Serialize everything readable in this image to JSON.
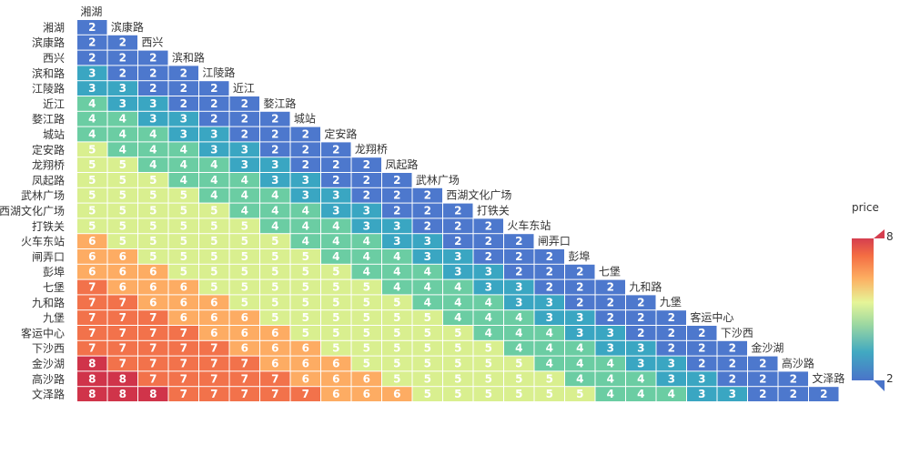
{
  "chart_data": {
    "type": "heatmap",
    "title": "",
    "stations": [
      "湘湖",
      "滨康路",
      "西兴",
      "滨和路",
      "江陵路",
      "近江",
      "婺江路",
      "城站",
      "定安路",
      "龙翔桥",
      "凤起路",
      "武林广场",
      "西湖文化广场",
      "打铁关",
      "火车东站",
      "闸弄口",
      "彭埠",
      "七堡",
      "九和路",
      "九堡",
      "客运中心",
      "下沙西",
      "金沙湖",
      "高沙路",
      "文泽路"
    ],
    "rows": [
      [
        2
      ],
      [
        2,
        2
      ],
      [
        2,
        2,
        2
      ],
      [
        3,
        2,
        2,
        2
      ],
      [
        3,
        3,
        2,
        2,
        2
      ],
      [
        4,
        3,
        3,
        2,
        2,
        2
      ],
      [
        4,
        4,
        3,
        3,
        2,
        2,
        2
      ],
      [
        4,
        4,
        4,
        3,
        3,
        2,
        2,
        2
      ],
      [
        5,
        4,
        4,
        4,
        3,
        3,
        2,
        2,
        2
      ],
      [
        5,
        5,
        4,
        4,
        4,
        3,
        3,
        2,
        2,
        2
      ],
      [
        5,
        5,
        5,
        4,
        4,
        4,
        3,
        3,
        2,
        2,
        2
      ],
      [
        5,
        5,
        5,
        5,
        4,
        4,
        4,
        3,
        3,
        2,
        2,
        2
      ],
      [
        5,
        5,
        5,
        5,
        5,
        4,
        4,
        4,
        3,
        3,
        2,
        2,
        2
      ],
      [
        5,
        5,
        5,
        5,
        5,
        5,
        4,
        4,
        4,
        3,
        3,
        2,
        2,
        2
      ],
      [
        6,
        5,
        5,
        5,
        5,
        5,
        5,
        4,
        4,
        4,
        3,
        3,
        2,
        2,
        2
      ],
      [
        6,
        6,
        5,
        5,
        5,
        5,
        5,
        5,
        4,
        4,
        4,
        3,
        3,
        2,
        2,
        2
      ],
      [
        6,
        6,
        6,
        5,
        5,
        5,
        5,
        5,
        5,
        4,
        4,
        4,
        3,
        3,
        2,
        2,
        2
      ],
      [
        7,
        6,
        6,
        6,
        5,
        5,
        5,
        5,
        5,
        5,
        4,
        4,
        4,
        3,
        3,
        2,
        2,
        2
      ],
      [
        7,
        7,
        6,
        6,
        6,
        5,
        5,
        5,
        5,
        5,
        5,
        4,
        4,
        4,
        3,
        3,
        2,
        2,
        2
      ],
      [
        7,
        7,
        7,
        6,
        6,
        6,
        5,
        5,
        5,
        5,
        5,
        5,
        4,
        4,
        4,
        3,
        3,
        2,
        2,
        2
      ],
      [
        7,
        7,
        7,
        7,
        6,
        6,
        6,
        5,
        5,
        5,
        5,
        5,
        5,
        4,
        4,
        4,
        3,
        3,
        2,
        2,
        2
      ],
      [
        7,
        7,
        7,
        7,
        7,
        6,
        6,
        6,
        5,
        5,
        5,
        5,
        5,
        5,
        4,
        4,
        4,
        3,
        3,
        2,
        2,
        2
      ],
      [
        8,
        7,
        7,
        7,
        7,
        7,
        6,
        6,
        6,
        5,
        5,
        5,
        5,
        5,
        5,
        4,
        4,
        4,
        3,
        3,
        2,
        2,
        2
      ],
      [
        8,
        8,
        7,
        7,
        7,
        7,
        7,
        6,
        6,
        6,
        5,
        5,
        5,
        5,
        5,
        5,
        4,
        4,
        4,
        3,
        3,
        2,
        2,
        2
      ],
      [
        8,
        8,
        8,
        7,
        7,
        7,
        7,
        7,
        6,
        6,
        6,
        5,
        5,
        5,
        5,
        5,
        5,
        4,
        4,
        4,
        3,
        3,
        2,
        2,
        2
      ]
    ],
    "legend": {
      "title": "price",
      "min": 2,
      "max": 8,
      "placement": "right"
    },
    "colors": [
      "#5e4fa2",
      "#3288bd",
      "#66c2a5",
      "#abdda4",
      "#e6f598",
      "#fee08b",
      "#fdae61",
      "#f46d43",
      "#d53e4f"
    ]
  }
}
